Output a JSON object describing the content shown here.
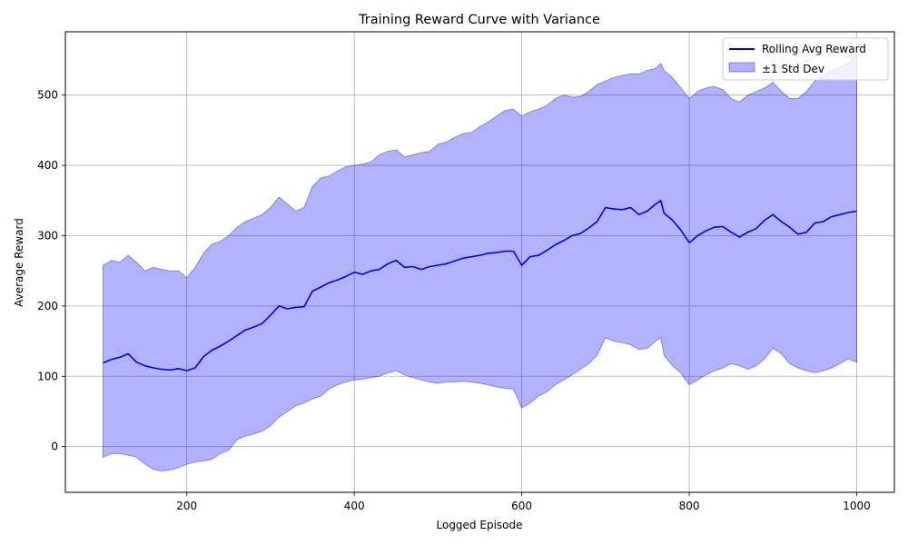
{
  "chart_data": {
    "type": "line",
    "title": "Training Reward Curve with Variance",
    "xlabel": "Logged Episode",
    "ylabel": "Average Reward",
    "xlim": [
      55,
      1045
    ],
    "ylim": [
      -65,
      590
    ],
    "xticks": [
      200,
      400,
      600,
      800,
      1000
    ],
    "yticks": [
      0,
      100,
      200,
      300,
      400,
      500
    ],
    "grid": true,
    "legend_position": "top-right",
    "series": [
      {
        "name": "Rolling Avg Reward",
        "kind": "line",
        "color": "#0000ee",
        "x": [
          100,
          110,
          120,
          130,
          140,
          150,
          160,
          170,
          180,
          190,
          200,
          210,
          220,
          230,
          240,
          250,
          260,
          270,
          280,
          290,
          300,
          310,
          320,
          330,
          340,
          350,
          360,
          370,
          380,
          390,
          400,
          410,
          420,
          430,
          440,
          450,
          460,
          470,
          480,
          490,
          500,
          510,
          520,
          530,
          540,
          550,
          560,
          570,
          580,
          590,
          600,
          610,
          620,
          630,
          640,
          650,
          660,
          670,
          680,
          690,
          700,
          710,
          720,
          730,
          740,
          750,
          760,
          766,
          770,
          780,
          790,
          800,
          810,
          820,
          830,
          840,
          850,
          860,
          870,
          880,
          890,
          900,
          910,
          920,
          930,
          940,
          950,
          960,
          970,
          980,
          990,
          1000
        ],
        "y": [
          119,
          124,
          127,
          132,
          120,
          115,
          112,
          110,
          109,
          111,
          108,
          112,
          128,
          137,
          143,
          150,
          158,
          166,
          170,
          175,
          187,
          200,
          196,
          198,
          199,
          221,
          227,
          233,
          237,
          242,
          248,
          245,
          250,
          252,
          260,
          265,
          255,
          256,
          252,
          256,
          258,
          260,
          264,
          268,
          270,
          272,
          275,
          276,
          278,
          278,
          258,
          270,
          272,
          279,
          287,
          293,
          300,
          303,
          311,
          320,
          340,
          338,
          337,
          340,
          330,
          335,
          345,
          350,
          332,
          322,
          308,
          290,
          300,
          307,
          312,
          313,
          305,
          298,
          305,
          310,
          322,
          330,
          320,
          312,
          302,
          305,
          318,
          320,
          327,
          330,
          333,
          335
        ]
      },
      {
        "name": "±1 Std Dev",
        "kind": "band",
        "color": "#0000ff",
        "fill_opacity": 0.3,
        "x": [
          100,
          110,
          120,
          130,
          140,
          150,
          160,
          170,
          180,
          190,
          200,
          210,
          220,
          230,
          240,
          250,
          260,
          270,
          280,
          290,
          300,
          310,
          320,
          330,
          340,
          350,
          360,
          370,
          380,
          390,
          400,
          410,
          420,
          430,
          440,
          450,
          460,
          470,
          480,
          490,
          500,
          510,
          520,
          530,
          540,
          550,
          560,
          570,
          580,
          590,
          600,
          610,
          620,
          630,
          640,
          650,
          660,
          670,
          680,
          690,
          700,
          710,
          720,
          730,
          740,
          750,
          760,
          766,
          770,
          780,
          790,
          800,
          810,
          820,
          830,
          840,
          850,
          860,
          870,
          880,
          890,
          900,
          910,
          920,
          930,
          940,
          950,
          960,
          970,
          980,
          990,
          1000
        ],
        "upper": [
          258,
          265,
          262,
          272,
          262,
          250,
          255,
          252,
          250,
          250,
          240,
          255,
          275,
          288,
          292,
          300,
          312,
          320,
          325,
          330,
          340,
          355,
          345,
          335,
          340,
          370,
          382,
          385,
          392,
          398,
          400,
          402,
          405,
          415,
          420,
          422,
          412,
          415,
          418,
          420,
          430,
          433,
          440,
          445,
          447,
          455,
          462,
          470,
          478,
          480,
          470,
          476,
          480,
          485,
          495,
          500,
          497,
          498,
          505,
          515,
          520,
          525,
          528,
          530,
          530,
          535,
          538,
          545,
          535,
          525,
          510,
          495,
          505,
          510,
          512,
          508,
          495,
          490,
          500,
          505,
          510,
          518,
          505,
          495,
          495,
          505,
          520,
          528,
          535,
          540,
          545,
          560
        ],
        "lower": [
          -15,
          -10,
          -10,
          -12,
          -15,
          -25,
          -32,
          -35,
          -33,
          -30,
          -25,
          -22,
          -20,
          -18,
          -10,
          -5,
          10,
          15,
          18,
          22,
          30,
          42,
          50,
          58,
          62,
          68,
          72,
          82,
          88,
          92,
          95,
          96,
          98,
          100,
          105,
          108,
          102,
          98,
          95,
          92,
          90,
          92,
          92,
          93,
          92,
          90,
          88,
          85,
          83,
          82,
          55,
          62,
          72,
          78,
          88,
          95,
          102,
          110,
          118,
          130,
          155,
          150,
          148,
          145,
          138,
          140,
          150,
          155,
          130,
          115,
          105,
          88,
          95,
          102,
          108,
          112,
          118,
          115,
          110,
          115,
          125,
          140,
          132,
          118,
          112,
          108,
          105,
          108,
          112,
          118,
          125,
          120
        ]
      }
    ],
    "legend": [
      "Rolling Avg Reward",
      "±1 Std Dev"
    ]
  }
}
